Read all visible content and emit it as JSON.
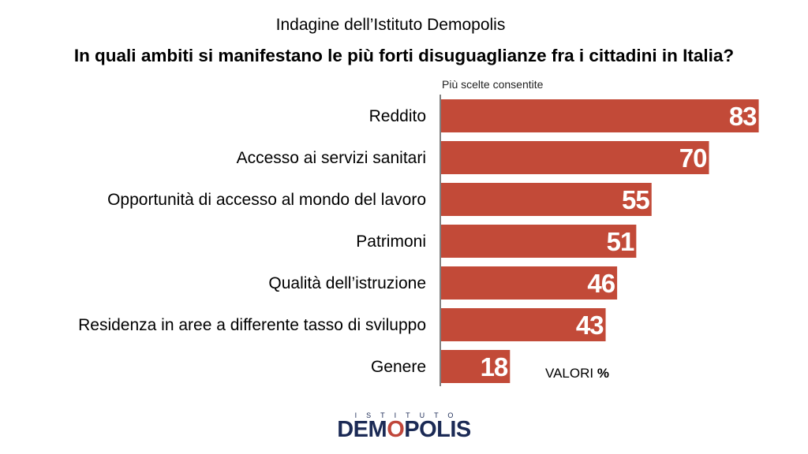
{
  "survey_title": "Indagine dell’Istituto Demopolis",
  "question": "In quali ambiti si manifestano le più forti disuguaglianze fra i cittadini in Italia?",
  "note": "Più scelte consentite",
  "units_label": "VALORI",
  "units_symbol": "%",
  "logo": {
    "top": "ISTITUTO",
    "main_prefix": "DEM",
    "main_o": "O",
    "main_suffix": "POLIS"
  },
  "colors": {
    "bar": "#c24a38",
    "axis": "#000000"
  },
  "chart_data": {
    "type": "bar",
    "orientation": "horizontal",
    "categories": [
      "Reddito",
      "Accesso ai servizi sanitari",
      "Opportunità di accesso al mondo del lavoro",
      "Patrimoni",
      "Qualità dell’istruzione",
      "Residenza in aree a differente tasso di sviluppo",
      "Genere"
    ],
    "values": [
      83,
      70,
      55,
      51,
      46,
      43,
      18
    ],
    "value_labels": [
      "83",
      "70",
      "55",
      "51",
      "46",
      "43",
      "18"
    ],
    "xlim": [
      0,
      83
    ],
    "grid": false,
    "legend": "none"
  }
}
